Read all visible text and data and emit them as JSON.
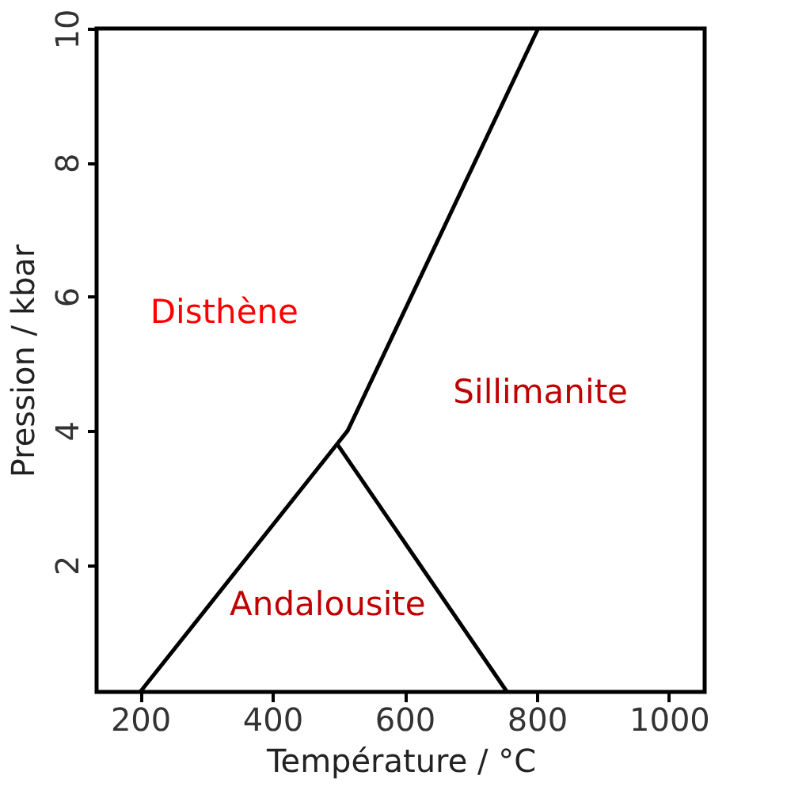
{
  "chart_data": {
    "type": "line",
    "xlabel": "Température / °C",
    "ylabel": "Pression / kbar",
    "xlim": [
      134,
      1054
    ],
    "ylim": [
      0.1,
      10
    ],
    "xticks": [
      200,
      400,
      600,
      800,
      1000
    ],
    "yticks": [
      2,
      4,
      6,
      8,
      10
    ],
    "grid": false,
    "marker": "none",
    "line_style": "solid",
    "series": [
      {
        "color": "#000000",
        "x": [
          200,
          498,
          514,
          802
        ],
        "values": [
          0.1,
          3.8,
          4.0,
          10
        ]
      },
      {
        "color": "#000000",
        "x": [
          498,
          755
        ],
        "values": [
          3.8,
          0.1
        ]
      }
    ],
    "annotations": [
      "Disthène",
      "Sillimanite",
      "Andalousite"
    ]
  }
}
